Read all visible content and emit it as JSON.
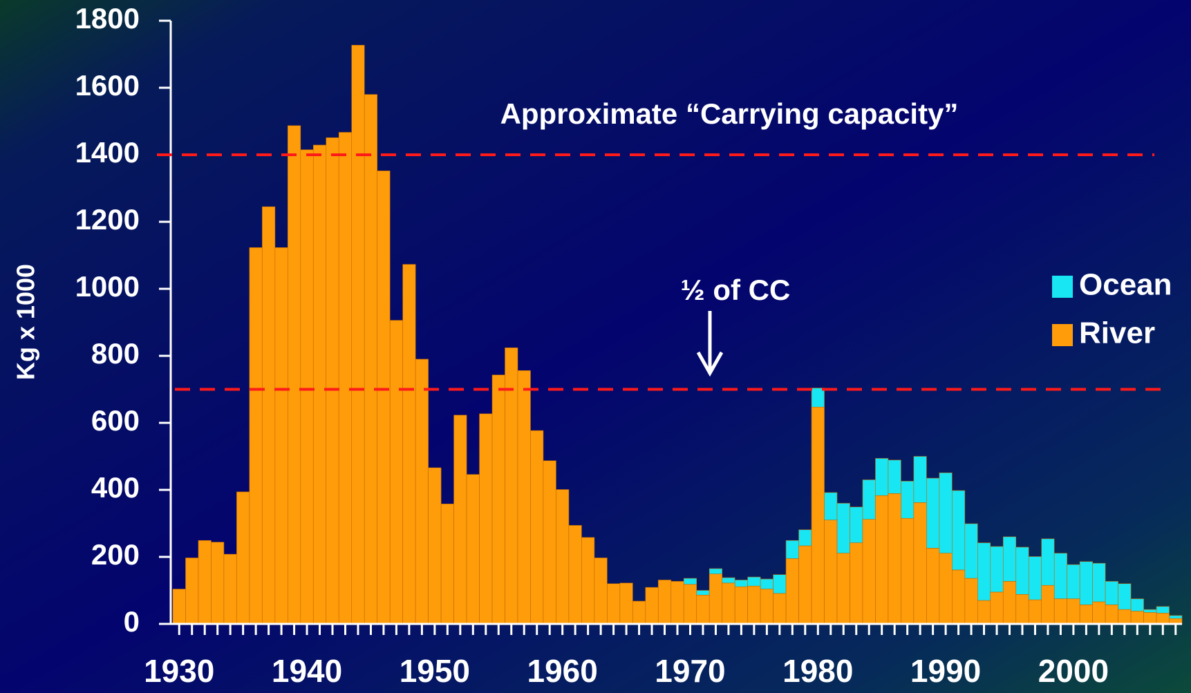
{
  "chart_data": {
    "type": "stacked_bar",
    "y_label": "Kg x 1000",
    "x": [
      1930,
      1931,
      1932,
      1933,
      1934,
      1935,
      1936,
      1937,
      1938,
      1939,
      1940,
      1941,
      1942,
      1943,
      1944,
      1945,
      1946,
      1947,
      1948,
      1949,
      1950,
      1951,
      1952,
      1953,
      1954,
      1955,
      1956,
      1957,
      1958,
      1959,
      1960,
      1961,
      1962,
      1963,
      1964,
      1965,
      1966,
      1967,
      1968,
      1969,
      1970,
      1971,
      1972,
      1973,
      1974,
      1975,
      1976,
      1977,
      1978,
      1979,
      1980,
      1981,
      1982,
      1983,
      1984,
      1985,
      1986,
      1987,
      1988,
      1989,
      1990,
      1991,
      1992,
      1993,
      1994,
      1995,
      1996,
      1997,
      1998,
      1999,
      2000,
      2001,
      2002,
      2003,
      2004,
      2005,
      2006,
      2007,
      2008
    ],
    "series": [
      {
        "name": "River",
        "color": "#ff9c0a",
        "values": [
          104,
          197,
          249,
          244,
          208,
          394,
          1123,
          1245,
          1123,
          1487,
          1415,
          1429,
          1451,
          1467,
          1727,
          1580,
          1352,
          906,
          1073,
          790,
          466,
          358,
          623,
          446,
          627,
          743,
          824,
          756,
          577,
          487,
          401,
          294,
          258,
          197,
          120,
          122,
          68,
          109,
          131,
          127,
          118,
          86,
          149,
          122,
          111,
          113,
          104,
          91,
          195,
          233,
          647,
          310,
          211,
          242,
          312,
          383,
          389,
          315,
          362,
          226,
          211,
          161,
          136,
          70,
          95,
          127,
          88,
          72,
          115,
          75,
          75,
          57,
          66,
          57,
          43,
          38,
          34,
          32,
          16
        ]
      },
      {
        "name": "Ocean",
        "color": "#18e6f2",
        "values": [
          0,
          0,
          0,
          0,
          0,
          0,
          0,
          0,
          0,
          0,
          0,
          0,
          0,
          0,
          0,
          0,
          0,
          0,
          0,
          0,
          0,
          0,
          0,
          0,
          0,
          0,
          0,
          0,
          0,
          0,
          0,
          0,
          0,
          0,
          0,
          0,
          0,
          0,
          0,
          0,
          18,
          14,
          16,
          16,
          20,
          27,
          30,
          56,
          54,
          48,
          57,
          82,
          149,
          107,
          118,
          111,
          100,
          111,
          138,
          209,
          240,
          237,
          163,
          172,
          136,
          133,
          141,
          129,
          139,
          136,
          102,
          129,
          115,
          70,
          77,
          37,
          9,
          20,
          9
        ]
      }
    ],
    "xlim": [
      1929.5,
      2008.5
    ],
    "xticks": [
      1930,
      1940,
      1950,
      1960,
      1970,
      1980,
      1990,
      2000
    ],
    "ylim": [
      0,
      1800
    ],
    "yticks": [
      0,
      200,
      400,
      600,
      800,
      1000,
      1200,
      1400,
      1600,
      1800
    ],
    "reference_lines": [
      {
        "value": 1400,
        "label": "Approximate “Carrying capacity”",
        "color": "#ff1a1a"
      },
      {
        "value": 700,
        "label": "½ of CC",
        "color": "#ff1a1a"
      }
    ],
    "legend": "right"
  }
}
